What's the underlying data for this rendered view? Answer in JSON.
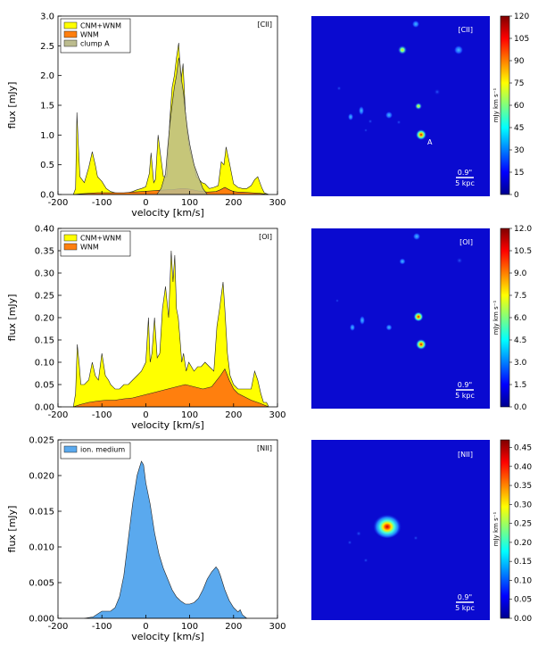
{
  "chart_data": [
    {
      "type": "area",
      "tag": "[CII]",
      "xlabel": "velocity [km/s]",
      "ylabel": "flux [mJy]",
      "xlim": [
        -200,
        300
      ],
      "ylim": [
        0,
        3.0
      ],
      "xticks": [
        "-200",
        "-100",
        "0",
        "100",
        "200",
        "300"
      ],
      "yticks": [
        "0.0",
        "0.5",
        "1.0",
        "1.5",
        "2.0",
        "2.5",
        "3.0"
      ],
      "legend": [
        "CNM+WNM",
        "WNM",
        "clump A"
      ],
      "series": [
        {
          "name": "CNM+WNM",
          "color": "#ffff00",
          "x": [
            -165,
            -160,
            -157,
            -154,
            -150,
            -140,
            -130,
            -122,
            -115,
            -110,
            -100,
            -90,
            -80,
            -70,
            -60,
            -50,
            -40,
            -30,
            -20,
            -10,
            0,
            8,
            12,
            18,
            22,
            28,
            33,
            40,
            48,
            55,
            60,
            65,
            70,
            75,
            80,
            85,
            90,
            95,
            100,
            110,
            115,
            122,
            128,
            135,
            145,
            155,
            165,
            172,
            178,
            183,
            190,
            200,
            210,
            220,
            230,
            240,
            248,
            255,
            260,
            265,
            270,
            280
          ],
          "y": [
            0,
            0.1,
            1.38,
            0.9,
            0.3,
            0.2,
            0.45,
            0.72,
            0.5,
            0.3,
            0.22,
            0.1,
            0.05,
            0.03,
            0.02,
            0.02,
            0.03,
            0.05,
            0.08,
            0.1,
            0.13,
            0.35,
            0.7,
            0.2,
            0.25,
            1.0,
            0.7,
            0.3,
            0.3,
            1.3,
            1.8,
            2.0,
            2.3,
            2.55,
            1.9,
            2.2,
            1.4,
            1.0,
            0.75,
            0.5,
            0.3,
            0.25,
            0.2,
            0.18,
            0.1,
            0.12,
            0.15,
            0.55,
            0.5,
            0.8,
            0.55,
            0.18,
            0.12,
            0.1,
            0.1,
            0.15,
            0.25,
            0.3,
            0.2,
            0.1,
            0.03,
            0
          ]
        },
        {
          "name": "WNM",
          "color": "#ff7f0e",
          "x": [
            -165,
            -150,
            -130,
            -110,
            -90,
            -70,
            -50,
            -30,
            -10,
            10,
            30,
            50,
            60,
            70,
            80,
            90,
            100,
            120,
            140,
            160,
            170,
            180,
            190,
            200,
            210,
            220,
            240,
            260,
            270,
            280
          ],
          "y": [
            0,
            0.01,
            0.02,
            0.03,
            0.03,
            0.03,
            0.03,
            0.04,
            0.05,
            0.06,
            0.07,
            0.08,
            0.08,
            0.09,
            0.1,
            0.1,
            0.09,
            0.06,
            0.04,
            0.05,
            0.08,
            0.12,
            0.08,
            0.05,
            0.04,
            0.04,
            0.03,
            0.02,
            0.01,
            0
          ]
        },
        {
          "name": "clump A",
          "color": "#bcbc8e",
          "x": [
            25,
            35,
            45,
            50,
            55,
            60,
            65,
            70,
            75,
            78,
            82,
            86,
            90,
            95,
            100,
            110,
            120,
            130,
            140
          ],
          "y": [
            0,
            0.1,
            0.35,
            0.8,
            1.2,
            1.5,
            1.8,
            2.0,
            2.3,
            2.2,
            1.9,
            1.7,
            1.4,
            1.1,
            0.85,
            0.5,
            0.3,
            0.1,
            0
          ]
        }
      ]
    },
    {
      "type": "area",
      "tag": "[OI]",
      "xlabel": "velocity [km/s]",
      "ylabel": "flux [mJy]",
      "xlim": [
        -200,
        300
      ],
      "ylim": [
        0,
        0.4
      ],
      "xticks": [
        "-200",
        "-100",
        "0",
        "100",
        "200",
        "300"
      ],
      "yticks": [
        "0.00",
        "0.05",
        "0.10",
        "0.15",
        "0.20",
        "0.25",
        "0.30",
        "0.35",
        "0.40"
      ],
      "legend": [
        "CNM+WNM",
        "WNM"
      ],
      "series": [
        {
          "name": "CNM+WNM",
          "color": "#ffff00",
          "x": [
            -165,
            -160,
            -156,
            -152,
            -148,
            -140,
            -130,
            -122,
            -115,
            -108,
            -100,
            -92,
            -85,
            -80,
            -70,
            -60,
            -50,
            -40,
            -30,
            -20,
            -10,
            0,
            6,
            10,
            14,
            20,
            26,
            32,
            38,
            45,
            52,
            58,
            62,
            66,
            70,
            74,
            78,
            82,
            86,
            92,
            98,
            104,
            110,
            118,
            126,
            135,
            145,
            155,
            162,
            168,
            172,
            176,
            180,
            186,
            192,
            200,
            210,
            220,
            230,
            240,
            248,
            255,
            262,
            268,
            275,
            280
          ],
          "y": [
            0,
            0.03,
            0.14,
            0.1,
            0.05,
            0.05,
            0.06,
            0.1,
            0.07,
            0.06,
            0.12,
            0.07,
            0.06,
            0.05,
            0.04,
            0.04,
            0.05,
            0.05,
            0.06,
            0.07,
            0.08,
            0.1,
            0.2,
            0.1,
            0.12,
            0.2,
            0.11,
            0.12,
            0.22,
            0.27,
            0.2,
            0.35,
            0.28,
            0.34,
            0.22,
            0.2,
            0.15,
            0.1,
            0.12,
            0.08,
            0.1,
            0.09,
            0.08,
            0.09,
            0.09,
            0.1,
            0.09,
            0.08,
            0.18,
            0.22,
            0.25,
            0.28,
            0.22,
            0.12,
            0.07,
            0.05,
            0.04,
            0.04,
            0.04,
            0.04,
            0.08,
            0.06,
            0.03,
            0.01,
            0.01,
            0
          ]
        },
        {
          "name": "WNM",
          "color": "#ff7f0e",
          "x": [
            -165,
            -150,
            -130,
            -110,
            -90,
            -70,
            -50,
            -30,
            -10,
            10,
            30,
            50,
            70,
            90,
            110,
            130,
            150,
            170,
            180,
            190,
            200,
            210,
            220,
            240,
            260,
            270,
            280
          ],
          "y": [
            0,
            0.005,
            0.01,
            0.013,
            0.015,
            0.015,
            0.018,
            0.02,
            0.025,
            0.03,
            0.035,
            0.04,
            0.045,
            0.05,
            0.045,
            0.04,
            0.045,
            0.07,
            0.085,
            0.06,
            0.04,
            0.03,
            0.025,
            0.015,
            0.008,
            0.004,
            0
          ]
        }
      ]
    },
    {
      "type": "area",
      "tag": "[NII]",
      "xlabel": "velocity [km/s]",
      "ylabel": "flux [mJy]",
      "xlim": [
        -200,
        300
      ],
      "ylim": [
        0,
        0.025
      ],
      "xticks": [
        "-200",
        "-100",
        "0",
        "100",
        "200",
        "300"
      ],
      "yticks": [
        "0.000",
        "0.005",
        "0.010",
        "0.015",
        "0.020",
        "0.025"
      ],
      "legend": [
        "ion. medium"
      ],
      "series": [
        {
          "name": "ion. medium",
          "color": "#5aa9ee",
          "x": [
            -140,
            -120,
            -100,
            -80,
            -70,
            -60,
            -50,
            -40,
            -30,
            -20,
            -15,
            -10,
            -5,
            0,
            10,
            20,
            30,
            40,
            50,
            60,
            70,
            80,
            90,
            100,
            110,
            120,
            130,
            140,
            150,
            160,
            165,
            170,
            180,
            190,
            200,
            210,
            215,
            220,
            230
          ],
          "y": [
            0,
            0.0002,
            0.001,
            0.001,
            0.0015,
            0.003,
            0.006,
            0.011,
            0.016,
            0.02,
            0.021,
            0.022,
            0.0215,
            0.019,
            0.016,
            0.012,
            0.009,
            0.007,
            0.0055,
            0.004,
            0.003,
            0.0024,
            0.002,
            0.002,
            0.0022,
            0.0028,
            0.004,
            0.0055,
            0.0065,
            0.0072,
            0.0068,
            0.006,
            0.004,
            0.0025,
            0.0015,
            0.0009,
            0.0012,
            0.0005,
            0
          ]
        }
      ]
    },
    {
      "type": "heatmap",
      "tag": "[CII]",
      "label_A": "A",
      "scalebar_top": "0.9\"",
      "scalebar_bottom": "5 kpc",
      "colorbar_label": "mJy km s⁻¹",
      "colorbar_ticks": [
        "0",
        "15",
        "30",
        "45",
        "60",
        "75",
        "90",
        "105",
        "120"
      ],
      "colorbar_range": [
        0,
        120
      ]
    },
    {
      "type": "heatmap",
      "tag": "[OI]",
      "scalebar_top": "0.9\"",
      "scalebar_bottom": "5 kpc",
      "colorbar_label": "mJy km s⁻¹",
      "colorbar_ticks": [
        "0.0",
        "1.5",
        "3.0",
        "4.5",
        "6.0",
        "7.5",
        "9.0",
        "10.5",
        "12.0"
      ],
      "colorbar_range": [
        0,
        12
      ]
    },
    {
      "type": "heatmap",
      "tag": "[NII]",
      "scalebar_top": "0.9\"",
      "scalebar_bottom": "5 kpc",
      "colorbar_label": "mJy km s⁻¹",
      "colorbar_ticks": [
        "0.00",
        "0.05",
        "0.10",
        "0.15",
        "0.20",
        "0.25",
        "0.30",
        "0.35",
        "0.40",
        "0.45"
      ],
      "colorbar_range": [
        0,
        0.47
      ]
    }
  ]
}
